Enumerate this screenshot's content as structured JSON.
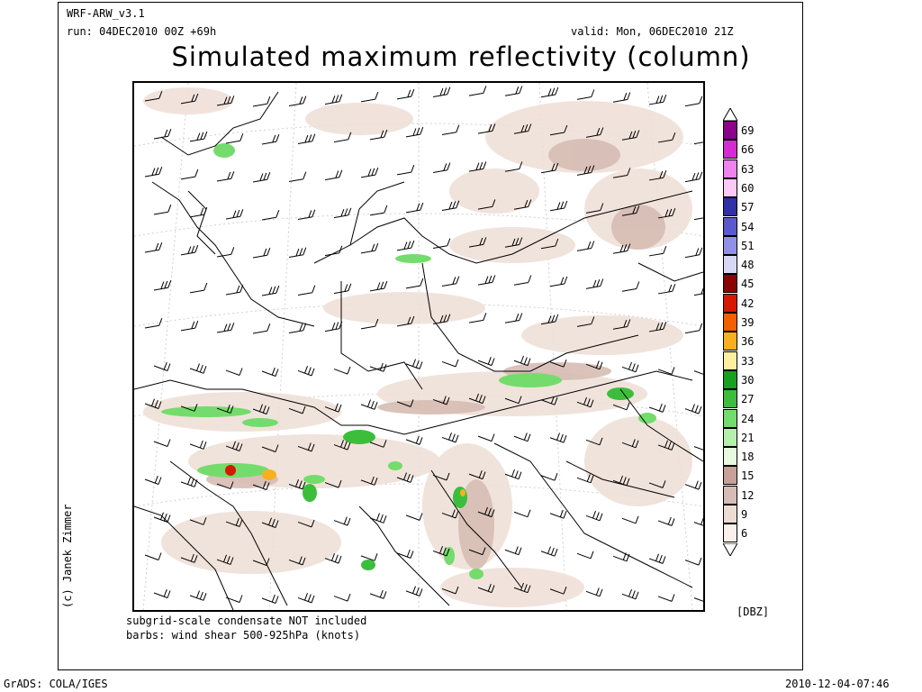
{
  "header": {
    "model": "WRF-ARW_v3.1",
    "run": "run: 04DEC2010 00Z +69h",
    "valid": "valid: Mon, 06DEC2010 21Z",
    "title": "Simulated maximum reflectivity (column)"
  },
  "notes": {
    "line1": "subgrid-scale condensate NOT included",
    "line2": "barbs: wind shear 500-925hPa (knots)"
  },
  "credit": "(c) Janek Zimmer",
  "colorbar": {
    "unit": "[DBZ]",
    "levels": [
      {
        "label": "69",
        "color": "#8b008b"
      },
      {
        "label": "66",
        "color": "#d52bd5"
      },
      {
        "label": "63",
        "color": "#ee82ee"
      },
      {
        "label": "60",
        "color": "#fcc8f6"
      },
      {
        "label": "57",
        "color": "#3030a8"
      },
      {
        "label": "54",
        "color": "#5a5acd"
      },
      {
        "label": "51",
        "color": "#9090e8"
      },
      {
        "label": "48",
        "color": "#d8d8f6"
      },
      {
        "label": "45",
        "color": "#8b0000"
      },
      {
        "label": "42",
        "color": "#d81800"
      },
      {
        "label": "39",
        "color": "#f46000"
      },
      {
        "label": "36",
        "color": "#f8b020"
      },
      {
        "label": "33",
        "color": "#fcf0a0"
      },
      {
        "label": "30",
        "color": "#18a020"
      },
      {
        "label": "27",
        "color": "#3cbe3c"
      },
      {
        "label": "24",
        "color": "#74dc6c"
      },
      {
        "label": "21",
        "color": "#b4f0ac"
      },
      {
        "label": "18",
        "color": "#e6fae0"
      },
      {
        "label": "15",
        "color": "#c8a098"
      },
      {
        "label": "12",
        "color": "#d6bcb4"
      },
      {
        "label": "9",
        "color": "#ecdcd4"
      },
      {
        "label": "6",
        "color": "#fbf0ea"
      }
    ]
  },
  "footer": {
    "left": "GrADS: COLA/IGES",
    "right": "2010-12-04-07:46"
  }
}
